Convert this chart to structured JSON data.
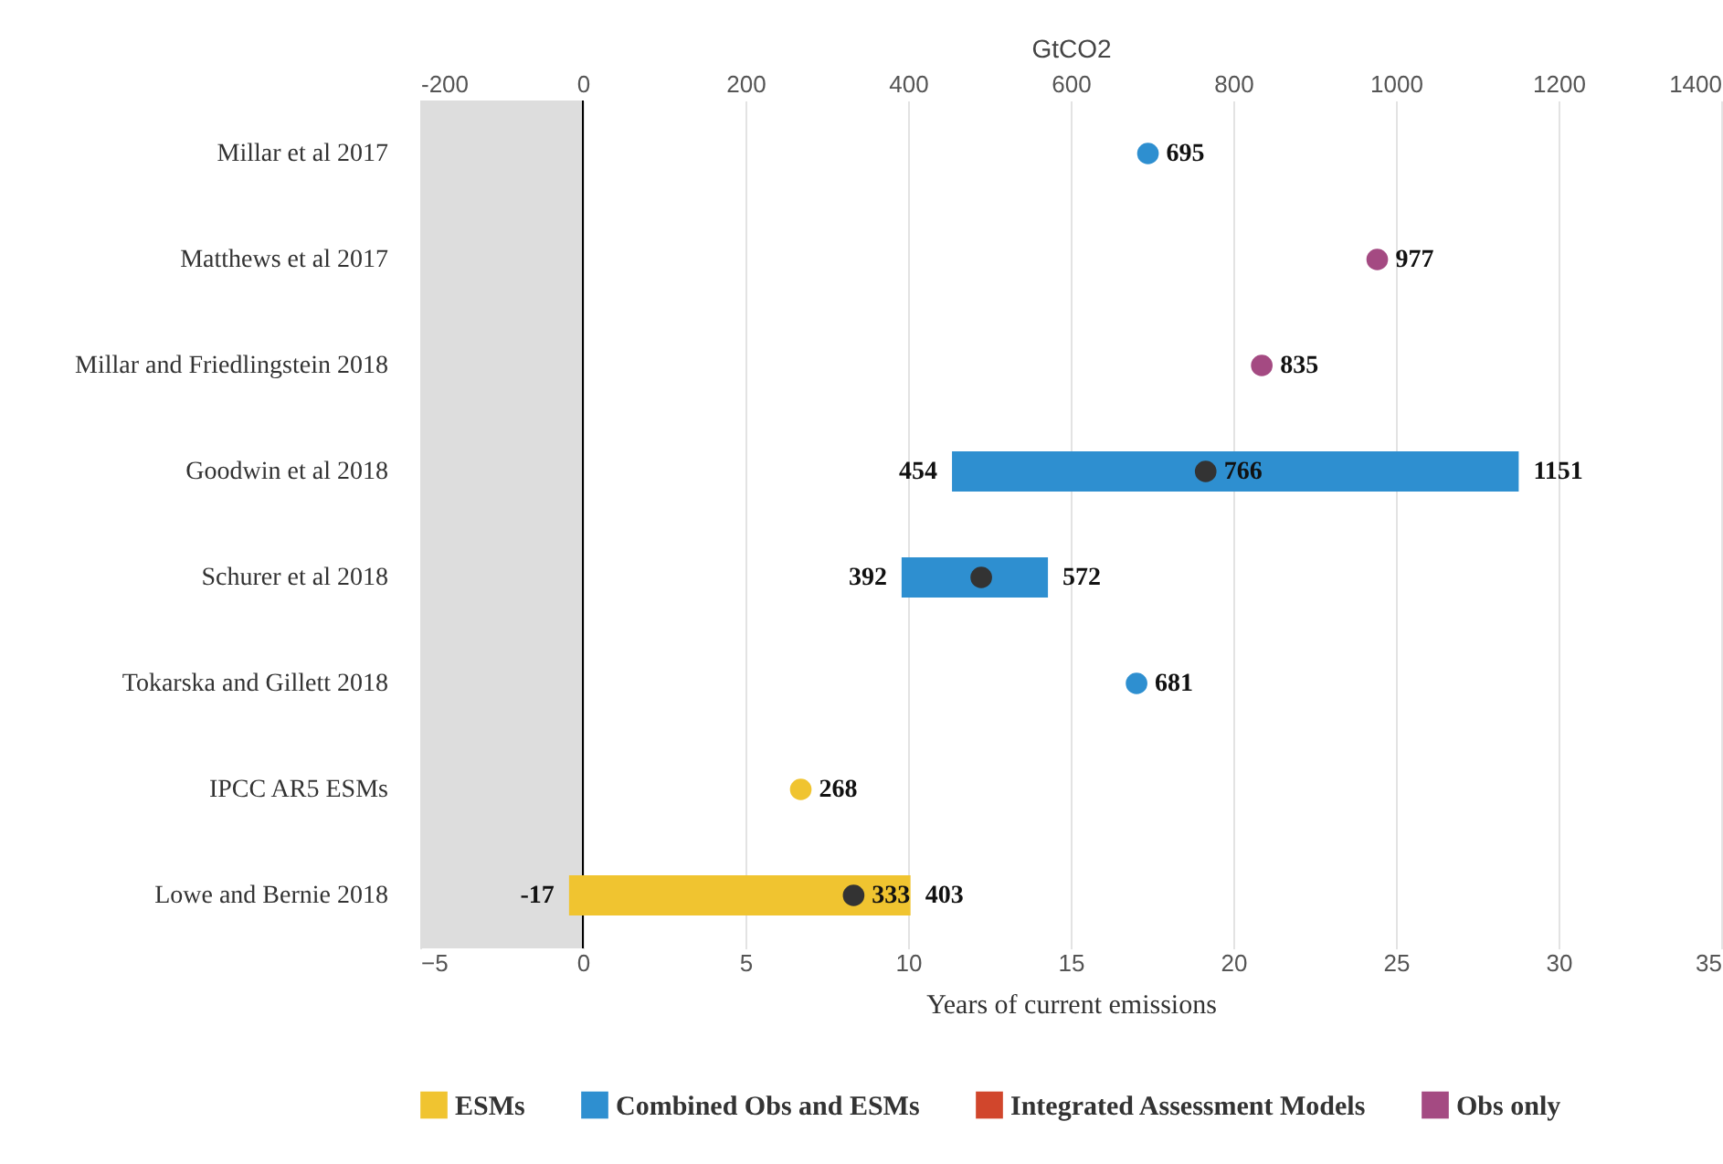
{
  "chart_data": {
    "type": "bar",
    "orientation": "horizontal",
    "categories": [
      "Millar et al 2017",
      "Matthews et al 2017",
      "Millar and Friedlingstein 2018",
      "Goodwin et al 2018",
      "Schurer et al 2018",
      "Tokarska and Gillett 2018",
      "IPCC AR5 ESMs",
      "Lowe and Bernie 2018"
    ],
    "series": [
      {
        "name": "ESMs",
        "color": "#f0c430",
        "values": [
          null,
          null,
          null,
          null,
          null,
          null,
          null,
          420
        ],
        "base": [
          null,
          null,
          null,
          null,
          null,
          null,
          null,
          -17
        ]
      },
      {
        "name": "Combined Obs and ESMs",
        "color": "#2e8fd0",
        "values": [
          null,
          null,
          null,
          697,
          180,
          null,
          null,
          null
        ],
        "base": [
          null,
          null,
          null,
          454,
          392,
          null,
          null,
          null
        ]
      },
      {
        "name": "Integrated Assessment Models",
        "color": "#d1462c",
        "values": [
          null,
          null,
          null,
          null,
          null,
          null,
          null,
          null
        ]
      },
      {
        "name": "Obs only",
        "type": "scatter",
        "color": "#a44a82",
        "values": [
          null,
          977,
          835,
          null,
          null,
          null,
          null,
          null
        ],
        "value_labels": [
          null,
          "977",
          "835",
          null,
          null,
          null,
          null,
          null
        ]
      },
      {
        "type": "scatter",
        "color": "#2e8fd0",
        "values": [
          695,
          null,
          null,
          null,
          null,
          681,
          null,
          null
        ],
        "value_labels": [
          "695",
          null,
          null,
          null,
          null,
          "681",
          null,
          null
        ]
      },
      {
        "type": "scatter",
        "color": "#f0c430",
        "values": [
          null,
          null,
          null,
          null,
          null,
          null,
          268,
          null
        ],
        "value_labels": [
          null,
          null,
          null,
          null,
          null,
          null,
          "268",
          null
        ]
      },
      {
        "type": "scatter",
        "color": "#333333",
        "values": [
          null,
          null,
          null,
          766,
          490,
          null,
          null,
          333
        ],
        "value_labels": [
          null,
          null,
          null,
          "766",
          null,
          null,
          null,
          "333"
        ]
      }
    ],
    "annotations": [
      {
        "text": "-17",
        "x": -17,
        "y": "Lowe and Bernie 2018"
      },
      {
        "text": "403",
        "x": 403,
        "y": "Lowe and Bernie 2018"
      },
      {
        "text": "454",
        "x": 454,
        "y": "Goodwin et al 2018"
      },
      {
        "text": "1151",
        "x": 1151,
        "y": "Goodwin et al 2018"
      },
      {
        "text": "392",
        "x": 392,
        "y": "Schurer et al 2018"
      },
      {
        "text": "572",
        "x": 572,
        "y": "Schurer et al 2018"
      }
    ],
    "xlabel": "GtCO2",
    "xlim": [
      -200,
      1400
    ],
    "xticks": [
      -200,
      0,
      200,
      400,
      600,
      800,
      1000,
      1200,
      1400
    ],
    "x2label": "Years of current emissions",
    "x2lim": [
      -5,
      35
    ],
    "x2ticks": [
      -5,
      0,
      5,
      10,
      15,
      20,
      25,
      30,
      35
    ],
    "bands": [
      {
        "axis": "x",
        "from": -200,
        "to": 0,
        "color": "#dddddd"
      }
    ],
    "ref_lines": [
      {
        "axis": "x",
        "value": 0,
        "color": "#000000"
      }
    ],
    "grid": "x",
    "legend": "bottom"
  }
}
